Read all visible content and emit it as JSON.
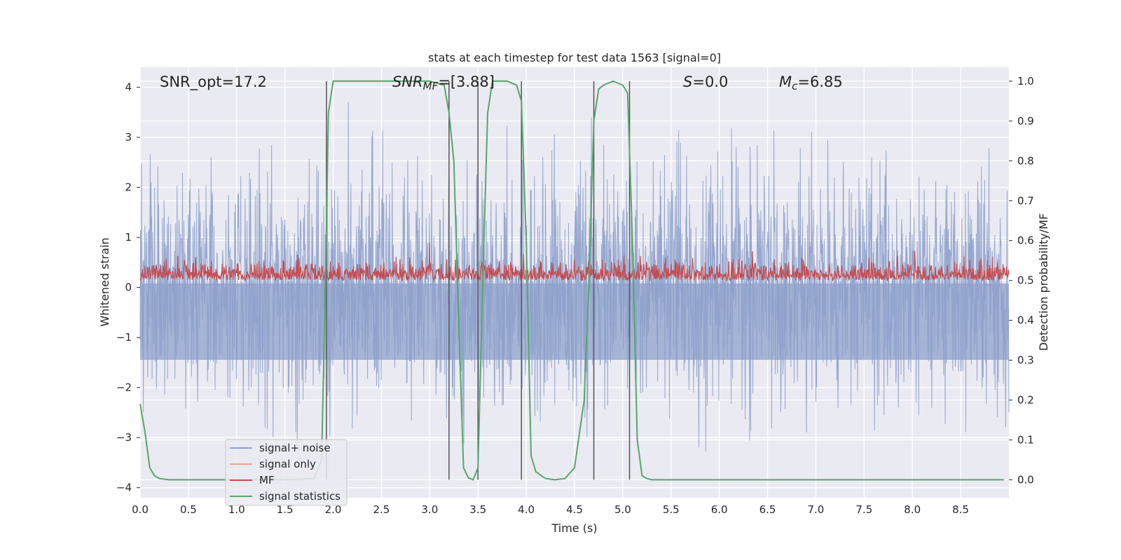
{
  "chart_data": {
    "type": "line",
    "title": "stats at each timestep for test data 1563 [signal=0]",
    "xlabel": "Time (s)",
    "ylabel": "Whitened strain",
    "ylabel_right": "Detection probability/MF",
    "xlim": [
      0,
      9
    ],
    "ylim": [
      -4.2,
      4.4
    ],
    "ylim_right": [
      -0.045,
      1.035
    ],
    "x_ticks": [
      "0.0",
      "0.5",
      "1.0",
      "1.5",
      "2.0",
      "2.5",
      "3.0",
      "3.5",
      "4.0",
      "4.5",
      "5.0",
      "5.5",
      "6.0",
      "6.5",
      "7.0",
      "7.5",
      "8.0",
      "8.5"
    ],
    "y_ticks": [
      "4",
      "3",
      "2",
      "1",
      "0",
      "−1",
      "−2",
      "−3",
      "−4"
    ],
    "y_ticks_right": [
      "1.0",
      "0.9",
      "0.8",
      "0.7",
      "0.6",
      "0.5",
      "0.4",
      "0.3",
      "0.2",
      "0.1",
      "0.0"
    ],
    "grid": true,
    "legend_position": "lower-left",
    "annotations": {
      "snr_opt": "SNR_opt=17.2",
      "snr_mf_sym": "SNR",
      "snr_mf_sub": "MF",
      "snr_mf_val": "=[3.88]",
      "s_sym": "S",
      "s_val": "=0.0",
      "mc_sym": "M",
      "mc_sub": "c",
      "mc_val": "=6.85"
    },
    "vertical_lines_x": [
      1.93,
      3.2,
      3.5,
      3.95,
      4.7,
      5.07
    ],
    "series": [
      {
        "name": "signal+ noise",
        "color": "#8da0cb",
        "description_axis": "left",
        "amplitude_typical": 1.5,
        "amplitude_max": 3.7
      },
      {
        "name": "signal only",
        "color": "#f0a68a",
        "description_axis": "left"
      },
      {
        "name": "MF",
        "color": "#c44e52",
        "description_axis": "right",
        "range": [
          0.5,
          0.6
        ]
      },
      {
        "name": "signal statistics",
        "color": "#55a868",
        "description_axis": "right",
        "x": [
          0.0,
          0.05,
          0.1,
          0.15,
          0.2,
          0.3,
          0.5,
          1.0,
          1.5,
          1.8,
          1.88,
          1.92,
          1.95,
          2.0,
          2.05,
          2.5,
          3.0,
          3.15,
          3.2,
          3.25,
          3.3,
          3.35,
          3.4,
          3.45,
          3.5,
          3.55,
          3.6,
          3.65,
          3.7,
          3.8,
          3.9,
          3.95,
          4.0,
          4.05,
          4.1,
          4.2,
          4.3,
          4.4,
          4.5,
          4.6,
          4.65,
          4.7,
          4.75,
          4.8,
          4.9,
          5.0,
          5.05,
          5.1,
          5.15,
          5.2,
          5.25,
          5.3,
          5.4,
          6.0,
          7.0,
          8.0,
          8.95
        ],
        "values": [
          0.19,
          0.12,
          0.03,
          0.01,
          0.003,
          0.0,
          0.0,
          0.0,
          0.0,
          0.003,
          0.05,
          0.5,
          0.92,
          1.0,
          1.0,
          1.0,
          1.0,
          0.99,
          0.92,
          0.8,
          0.4,
          0.03,
          0.005,
          0.0,
          0.03,
          0.5,
          0.92,
          1.0,
          1.0,
          1.0,
          0.99,
          0.95,
          0.6,
          0.06,
          0.02,
          0.003,
          0.0,
          0.003,
          0.03,
          0.2,
          0.5,
          0.9,
          0.98,
          0.99,
          1.0,
          0.99,
          0.97,
          0.6,
          0.1,
          0.01,
          0.003,
          0.0,
          0.0,
          0.0,
          0.0,
          0.0,
          0.0
        ]
      }
    ]
  }
}
